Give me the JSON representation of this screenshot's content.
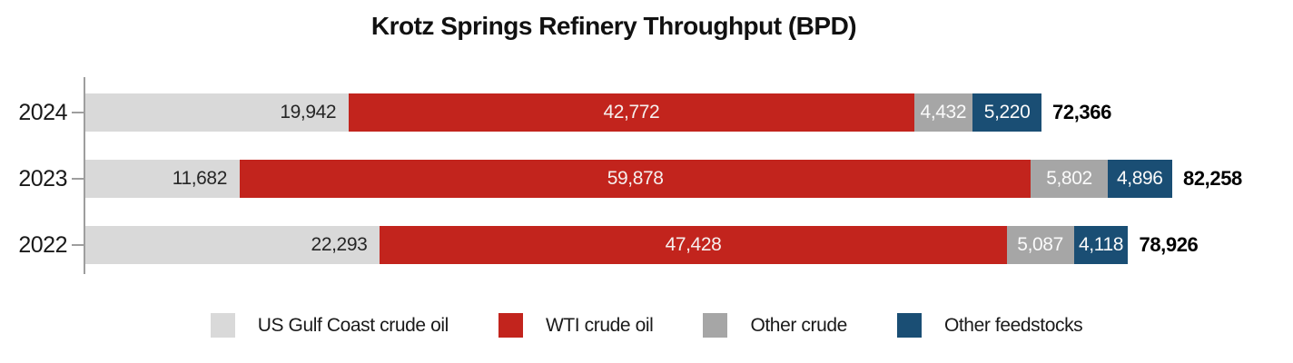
{
  "chart_data": {
    "type": "bar",
    "orientation": "horizontal",
    "stacked": true,
    "title": "Krotz Springs Refinery Throughput (BPD)",
    "categories": [
      "2024",
      "2023",
      "2022"
    ],
    "series": [
      {
        "name": "US Gulf Coast crude oil",
        "color": "#d9d9d9",
        "label_color": "#262626",
        "label_align": "right",
        "values": [
          19942,
          11682,
          22293
        ]
      },
      {
        "name": "WTI crude oil",
        "color": "#c2241d",
        "label_color": "#f6efee",
        "label_align": "center",
        "values": [
          42772,
          59878,
          47428
        ]
      },
      {
        "name": "Other crude",
        "color": "#a6a6a6",
        "label_color": "#fafafa",
        "label_align": "center",
        "values": [
          4432,
          5802,
          5087
        ]
      },
      {
        "name": "Other feedstocks",
        "color": "#1a4e74",
        "label_color": "#fafafa",
        "label_align": "center",
        "values": [
          5220,
          4896,
          4118
        ]
      }
    ],
    "totals": [
      72366,
      82258,
      78926
    ],
    "value_axis_visible": false,
    "grid": false,
    "legend_position": "bottom",
    "colors": {
      "axis": "#9e9e9e",
      "title_text": "#111111",
      "total_text": "#000000"
    }
  }
}
